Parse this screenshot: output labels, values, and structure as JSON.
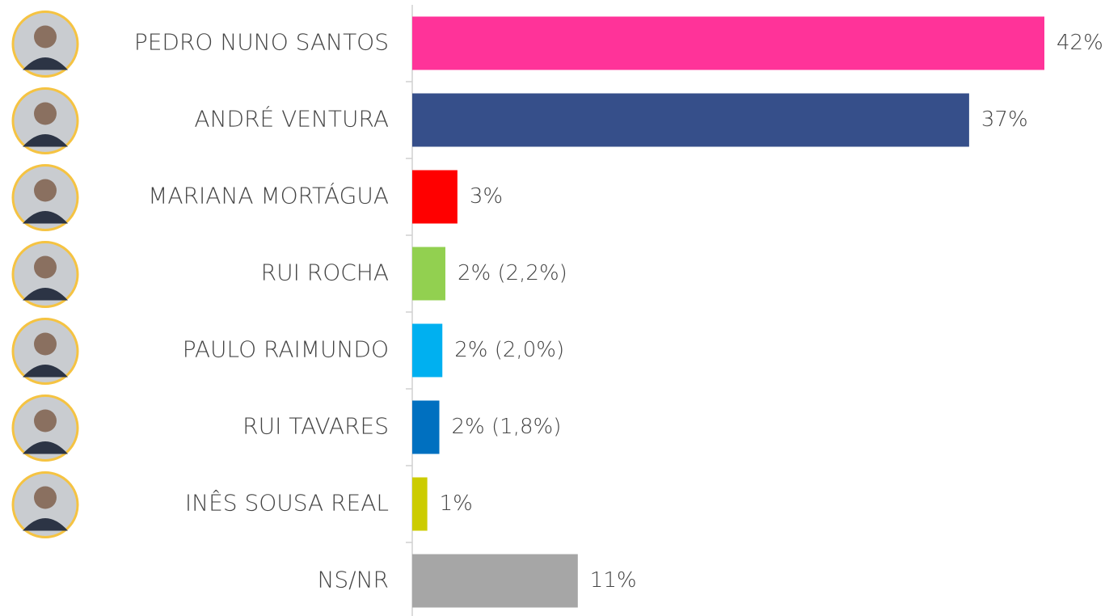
{
  "chart_data": {
    "type": "barh",
    "categories": [
      "PEDRO NUNO SANTOS",
      "ANDRÉ VENTURA",
      "MARIANA MORTÁGUA",
      "RUI ROCHA",
      "PAULO RAIMUNDO",
      "RUI TAVARES",
      "INÊS SOUSA REAL",
      "NS/NR"
    ],
    "values": [
      42,
      37,
      3,
      2.2,
      2.0,
      1.8,
      1,
      11
    ],
    "value_labels": [
      "42%",
      "37%",
      "3%",
      "2% (2,2%)",
      "2% (2,0%)",
      "2% (1,8%)",
      "1%",
      "11%"
    ],
    "colors": [
      "#ff3399",
      "#364f8a",
      "#ff0000",
      "#92d050",
      "#00b0f0",
      "#0070c0",
      "#cccc00",
      "#a6a6a6"
    ]
  }
}
